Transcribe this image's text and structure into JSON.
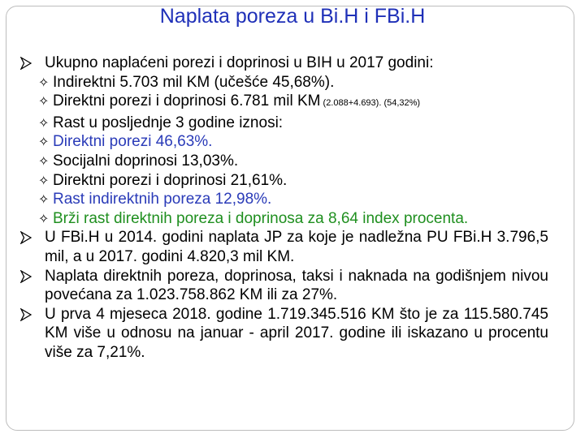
{
  "title": "Naplata poreza u Bi.H i FBi.H",
  "colors": {
    "title": "#1f30b8",
    "blue_text": "#2a3bb8",
    "green_text": "#1f8f1f",
    "frame": "#bdbdbd"
  },
  "bullets": [
    {
      "text": "Ukupno naplaćeni porezi i doprinosi u BIH u 2017 godini:",
      "icon": "arrowhead-bullet-icon",
      "sub": [
        {
          "text": "Indirektni 5.703 mil KM (učešće 45,68%).",
          "small": "",
          "color": "black",
          "icon": "four-point-star-icon"
        },
        {
          "text": "Direktni porezi i doprinosi 6.781 mil KM",
          "small": " (2.088+4.693). (54,32%)",
          "color": "black",
          "icon": "four-point-star-icon"
        },
        {
          "text": "Rast u posljednje 3 godine iznosi:",
          "small": "",
          "color": "black",
          "icon": "four-point-star-icon"
        },
        {
          "text": "Direktni porezi 46,63%.",
          "small": "",
          "color": "blue",
          "icon": "four-point-star-icon"
        },
        {
          "text": "Socijalni doprinosi 13,03%.",
          "small": "",
          "color": "black",
          "icon": "four-point-star-icon"
        },
        {
          "text": "Direktni porezi i doprinosi 21,61%.",
          "small": "",
          "color": "black",
          "icon": "four-point-star-icon"
        },
        {
          "text": "Rast indirektnih poreza 12,98%.",
          "small": "",
          "color": "blue",
          "icon": "four-point-star-icon"
        },
        {
          "text": "Brži rast direktnih poreza i doprinosa za 8,64 index procenta.",
          "small": "",
          "color": "green",
          "icon": "four-point-star-icon"
        }
      ]
    },
    {
      "text": "U FBi.H u 2014. godini naplata JP za koje je nadležna PU FBi.H 3.796,5 mil, a u 2017. godini 4.820,3 mil KM.",
      "icon": "arrowhead-bullet-icon"
    },
    {
      "text": "Naplata direktnih poreza, doprinosa, taksi i naknada na godišnjem nivou povećana za 1.023.758.862 KM ili za 27%.",
      "icon": "arrowhead-bullet-icon"
    },
    {
      "text": "U prva 4 mjeseca 2018. godine 1.719.345.516 KM što je za 115.580.745 KM više u odnosu na januar - april 2017. godine ili iskazano u procentu više za 7,21%.",
      "icon": "arrowhead-bullet-icon"
    }
  ]
}
